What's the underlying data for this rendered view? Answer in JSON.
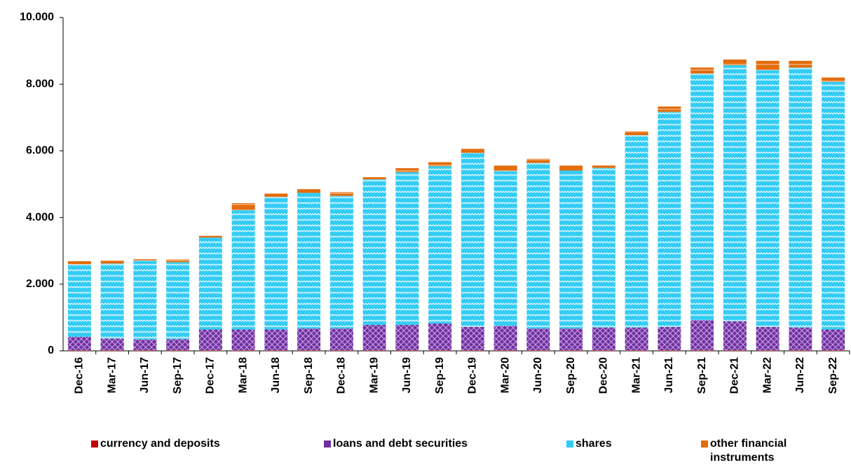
{
  "chart_data": {
    "type": "stacked_bar",
    "categories": [
      "Dec-16",
      "Mar-17",
      "Jun-17",
      "Sep-17",
      "Dec-17",
      "Mar-18",
      "Jun-18",
      "Sep-18",
      "Dec-18",
      "Mar-19",
      "Jun-19",
      "Sep-19",
      "Dec-19",
      "Mar-20",
      "Jun-20",
      "Sep-20",
      "Dec-20",
      "Mar-21",
      "Jun-21",
      "Sep-21",
      "Dec-21",
      "Mar-22",
      "Jun-22",
      "Sep-22"
    ],
    "series": [
      {
        "name": "currency and deposits",
        "color": "#c00000",
        "values": [
          20,
          20,
          20,
          20,
          20,
          20,
          20,
          20,
          20,
          20,
          20,
          20,
          20,
          20,
          20,
          20,
          20,
          20,
          20,
          20,
          20,
          20,
          20,
          20
        ]
      },
      {
        "name": "loans and debt securities",
        "color": "#7030a0",
        "values": [
          400,
          350,
          320,
          330,
          620,
          620,
          620,
          650,
          650,
          760,
          760,
          800,
          700,
          730,
          650,
          650,
          680,
          680,
          700,
          900,
          870,
          700,
          680,
          620
        ]
      },
      {
        "name": "shares",
        "color": "#33ccf5",
        "values": [
          2180,
          2250,
          2360,
          2310,
          2760,
          3580,
          3980,
          4070,
          3980,
          4370,
          4580,
          4720,
          5220,
          4640,
          4970,
          4740,
          4790,
          5770,
          6450,
          7400,
          7680,
          7700,
          7800,
          7430
        ]
      },
      {
        "name": "other financial instruments",
        "color": "#e46c0a",
        "values": [
          90,
          90,
          50,
          80,
          50,
          210,
          100,
          110,
          110,
          60,
          120,
          120,
          120,
          170,
          120,
          150,
          80,
          120,
          160,
          180,
          170,
          280,
          200,
          130
        ]
      }
    ],
    "ylim": [
      0,
      10000
    ],
    "yticks": [
      0,
      {
        "value": 2000,
        "label": "2.000"
      },
      {
        "value": 4000,
        "label": "4.000"
      },
      {
        "value": 6000,
        "label": "6.000"
      },
      {
        "value": 8000,
        "label": "8.000"
      },
      {
        "value": 10000,
        "label": "10.000"
      }
    ]
  }
}
